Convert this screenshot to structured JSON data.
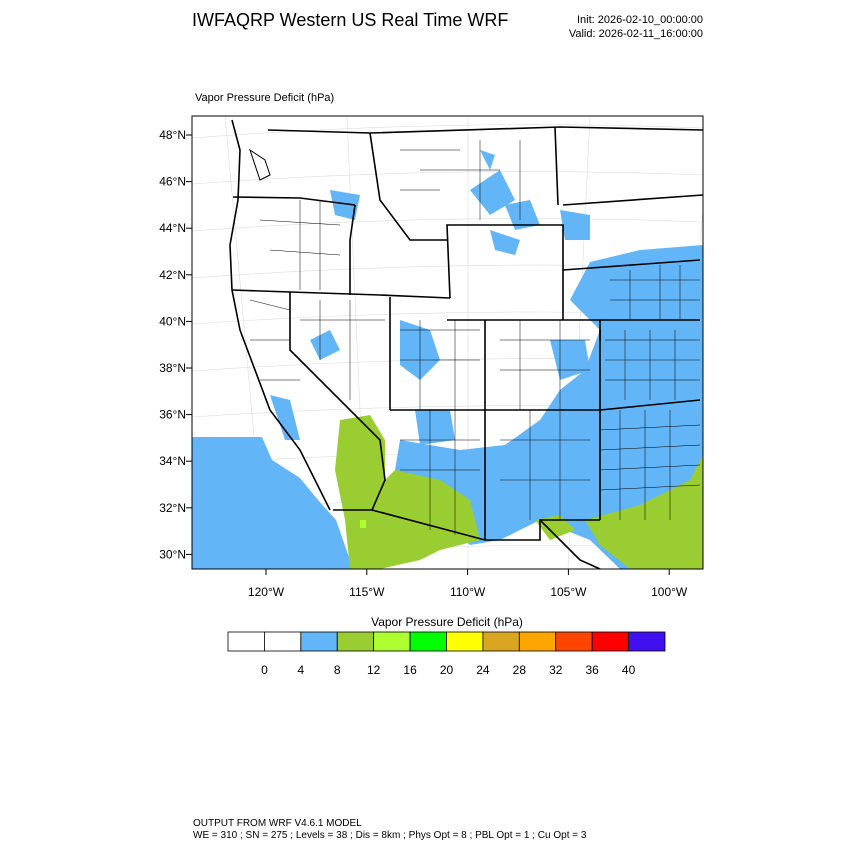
{
  "header": {
    "title": "IWFAQRP Western US Real Time WRF",
    "init": "Init: 2026-02-10_00:00:00",
    "valid": "Valid: 2026-02-11_16:00:00"
  },
  "map": {
    "field_label": "Vapor Pressure Deficit   (hPa)",
    "lat_labels": [
      "48°N",
      "46°N",
      "44°N",
      "42°N",
      "40°N",
      "38°N",
      "36°N",
      "34°N",
      "32°N",
      "30°N"
    ],
    "lon_labels": [
      "120°W",
      "115°W",
      "110°W",
      "105°W",
      "100°W"
    ]
  },
  "colorbar": {
    "title": "Vapor Pressure Deficit  (hPa)",
    "colors": [
      "#ffffff",
      "#ffffff",
      "#62b5f7",
      "#9acd32",
      "#adff2f",
      "#00ff00",
      "#ffff00",
      "#daa520",
      "#ffa500",
      "#ff4500",
      "#ff0000",
      "#4010f0"
    ],
    "labels": [
      0,
      4,
      8,
      12,
      16,
      20,
      24,
      28,
      32,
      36,
      40
    ]
  },
  "footer": {
    "line1": "OUTPUT FROM WRF V4.6.1 MODEL",
    "line2": "WE = 310 ; SN = 275 ; Levels = 38 ; Dis = 8km ; Phys Opt = 8 ; PBL Opt = 1 ; Cu Opt = 3"
  }
}
